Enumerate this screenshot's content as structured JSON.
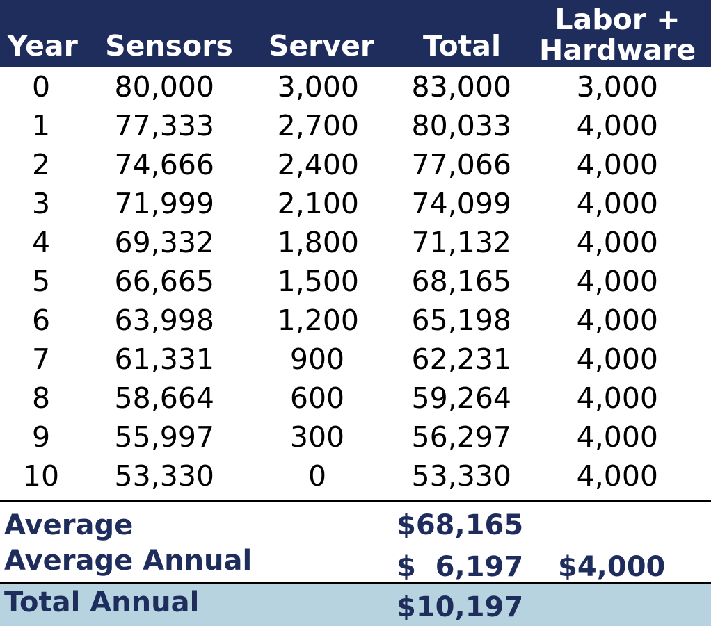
{
  "header": {
    "year": "Year",
    "sensors": "Sensors",
    "server": "Server",
    "total": "Total",
    "labor_line1": "Labor +",
    "labor_line2": "Hardware"
  },
  "rows": [
    {
      "year": "0",
      "sensors": "80,000",
      "server": "3,000",
      "total": "83,000",
      "labor": "3,000"
    },
    {
      "year": "1",
      "sensors": "77,333",
      "server": "2,700",
      "total": "80,033",
      "labor": "4,000"
    },
    {
      "year": "2",
      "sensors": "74,666",
      "server": "2,400",
      "total": "77,066",
      "labor": "4,000"
    },
    {
      "year": "3",
      "sensors": "71,999",
      "server": "2,100",
      "total": "74,099",
      "labor": "4,000"
    },
    {
      "year": "4",
      "sensors": "69,332",
      "server": "1,800",
      "total": "71,132",
      "labor": "4,000"
    },
    {
      "year": "5",
      "sensors": "66,665",
      "server": "1,500",
      "total": "68,165",
      "labor": "4,000"
    },
    {
      "year": "6",
      "sensors": "63,998",
      "server": "1,200",
      "total": "65,198",
      "labor": "4,000"
    },
    {
      "year": "7",
      "sensors": "61,331",
      "server": "900",
      "total": "62,231",
      "labor": "4,000"
    },
    {
      "year": "8",
      "sensors": "58,664",
      "server": "600",
      "total": "59,264",
      "labor": "4,000"
    },
    {
      "year": "9",
      "sensors": "55,997",
      "server": "300",
      "total": "56,297",
      "labor": "4,000"
    },
    {
      "year": "10",
      "sensors": "53,330",
      "server": "0",
      "total": "53,330",
      "labor": "4,000"
    }
  ],
  "summary": {
    "average_label": "Average",
    "average_total": "$68,165",
    "average_annual_label": "Average Annual",
    "average_annual_total": "$  6,197",
    "average_annual_labor": "$4,000",
    "total_annual_label": "Total Annual",
    "total_annual_total": "$10,197"
  },
  "colors": {
    "header_bg": "#1f2d5c",
    "header_text": "#ffffff",
    "summary_text": "#1f2d5c",
    "total_band": "#b7d3e0"
  }
}
